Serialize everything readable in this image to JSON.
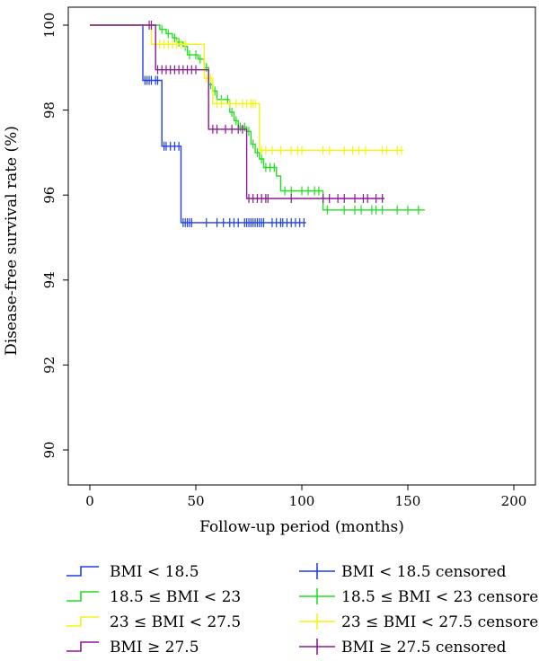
{
  "chart_data": {
    "type": "line",
    "subtype": "kaplan-meier step curve with censor marks",
    "xlabel": "Follow-up period (months)",
    "ylabel": "Disease-free survival rate (%)",
    "xlim": [
      0,
      200
    ],
    "ylim": [
      90,
      100
    ],
    "xticks": [
      0,
      50,
      100,
      150,
      200
    ],
    "yticks": [
      90,
      92,
      94,
      96,
      98,
      100
    ],
    "grid": false,
    "legend_position": "bottom",
    "series": [
      {
        "name": "BMI < 18.5",
        "censor_name": "BMI < 18.5 censored",
        "color": "#1f3fe6",
        "steps": [
          [
            0,
            100
          ],
          [
            25,
            100
          ],
          [
            25,
            98.7
          ],
          [
            34,
            98.7
          ],
          [
            34,
            97.15
          ],
          [
            43,
            97.15
          ],
          [
            43,
            95.35
          ],
          [
            102,
            95.35
          ]
        ],
        "censored": [
          [
            26,
            98.7
          ],
          [
            27,
            98.7
          ],
          [
            28,
            98.7
          ],
          [
            29,
            98.7
          ],
          [
            31,
            98.7
          ],
          [
            32,
            98.7
          ],
          [
            35,
            97.15
          ],
          [
            36,
            97.15
          ],
          [
            38,
            97.15
          ],
          [
            40,
            97.15
          ],
          [
            42,
            97.15
          ],
          [
            44,
            95.35
          ],
          [
            45,
            95.35
          ],
          [
            46,
            95.35
          ],
          [
            47,
            95.35
          ],
          [
            48,
            95.35
          ],
          [
            55,
            95.35
          ],
          [
            60,
            95.35
          ],
          [
            63,
            95.35
          ],
          [
            66,
            95.35
          ],
          [
            68,
            95.35
          ],
          [
            70,
            95.35
          ],
          [
            73,
            95.35
          ],
          [
            74,
            95.35
          ],
          [
            75,
            95.35
          ],
          [
            76,
            95.35
          ],
          [
            77,
            95.35
          ],
          [
            78,
            95.35
          ],
          [
            79,
            95.35
          ],
          [
            80,
            95.35
          ],
          [
            81,
            95.35
          ],
          [
            82,
            95.35
          ],
          [
            86,
            95.35
          ],
          [
            88,
            95.35
          ],
          [
            90,
            95.35
          ],
          [
            91,
            95.35
          ],
          [
            93,
            95.35
          ],
          [
            95,
            95.35
          ],
          [
            97,
            95.35
          ],
          [
            99,
            95.35
          ],
          [
            101,
            95.35
          ]
        ]
      },
      {
        "name": "18.5 ≤ BMI < 23",
        "censor_name": "18.5 ≤ BMI < 23 censored",
        "color": "#22dd22",
        "steps": [
          [
            0,
            100
          ],
          [
            33,
            100
          ],
          [
            33,
            99.9
          ],
          [
            36,
            99.9
          ],
          [
            36,
            99.8
          ],
          [
            39,
            99.8
          ],
          [
            39,
            99.7
          ],
          [
            41,
            99.7
          ],
          [
            41,
            99.6
          ],
          [
            44,
            99.6
          ],
          [
            44,
            99.5
          ],
          [
            46,
            99.5
          ],
          [
            46,
            99.3
          ],
          [
            51,
            99.3
          ],
          [
            51,
            99.2
          ],
          [
            54,
            99.2
          ],
          [
            54,
            99.0
          ],
          [
            56,
            99.0
          ],
          [
            56,
            98.6
          ],
          [
            58,
            98.6
          ],
          [
            58,
            98.45
          ],
          [
            60,
            98.45
          ],
          [
            60,
            98.25
          ],
          [
            66,
            98.25
          ],
          [
            66,
            97.95
          ],
          [
            68,
            97.95
          ],
          [
            68,
            97.75
          ],
          [
            70,
            97.75
          ],
          [
            70,
            97.6
          ],
          [
            74,
            97.6
          ],
          [
            74,
            97.5
          ],
          [
            76,
            97.5
          ],
          [
            76,
            97.2
          ],
          [
            78,
            97.2
          ],
          [
            78,
            97.0
          ],
          [
            80,
            97.0
          ],
          [
            80,
            96.85
          ],
          [
            82,
            96.85
          ],
          [
            82,
            96.65
          ],
          [
            88,
            96.65
          ],
          [
            88,
            96.45
          ],
          [
            90,
            96.45
          ],
          [
            90,
            96.1
          ],
          [
            110,
            96.1
          ],
          [
            110,
            95.65
          ],
          [
            158,
            95.65
          ]
        ],
        "censored": [
          [
            34,
            99.9
          ],
          [
            37,
            99.8
          ],
          [
            40,
            99.7
          ],
          [
            42,
            99.6
          ],
          [
            45,
            99.5
          ],
          [
            47,
            99.3
          ],
          [
            50,
            99.3
          ],
          [
            52,
            99.2
          ],
          [
            55,
            99.0
          ],
          [
            57,
            98.6
          ],
          [
            59,
            98.45
          ],
          [
            62,
            98.25
          ],
          [
            65,
            98.25
          ],
          [
            67,
            97.95
          ],
          [
            69,
            97.75
          ],
          [
            71,
            97.6
          ],
          [
            73,
            97.6
          ],
          [
            75,
            97.5
          ],
          [
            77,
            97.2
          ],
          [
            79,
            97.0
          ],
          [
            81,
            96.85
          ],
          [
            83,
            96.65
          ],
          [
            85,
            96.65
          ],
          [
            87,
            96.65
          ],
          [
            92,
            96.1
          ],
          [
            95,
            96.1
          ],
          [
            100,
            96.1
          ],
          [
            103,
            96.1
          ],
          [
            106,
            96.1
          ],
          [
            108,
            96.1
          ],
          [
            112,
            95.65
          ],
          [
            120,
            95.65
          ],
          [
            125,
            95.65
          ],
          [
            128,
            95.65
          ],
          [
            133,
            95.65
          ],
          [
            135,
            95.65
          ],
          [
            138,
            95.65
          ],
          [
            145,
            95.65
          ],
          [
            150,
            95.65
          ],
          [
            155,
            95.65
          ]
        ]
      },
      {
        "name": "23 ≤ BMI < 27.5",
        "censor_name": "23 ≤ BMI < 27.5 censored",
        "color": "#f4f414",
        "steps": [
          [
            0,
            100
          ],
          [
            29,
            100
          ],
          [
            29,
            99.55
          ],
          [
            54,
            99.55
          ],
          [
            54,
            98.75
          ],
          [
            58,
            98.75
          ],
          [
            58,
            98.15
          ],
          [
            80,
            98.15
          ],
          [
            80,
            97.05
          ],
          [
            148,
            97.05
          ]
        ],
        "censored": [
          [
            31,
            99.55
          ],
          [
            33,
            99.55
          ],
          [
            35,
            99.55
          ],
          [
            37,
            99.55
          ],
          [
            39,
            99.55
          ],
          [
            41,
            99.55
          ],
          [
            43,
            99.55
          ],
          [
            45,
            99.55
          ],
          [
            55,
            98.75
          ],
          [
            57,
            98.75
          ],
          [
            60,
            98.15
          ],
          [
            62,
            98.15
          ],
          [
            66,
            98.15
          ],
          [
            69,
            98.15
          ],
          [
            72,
            98.15
          ],
          [
            74,
            98.15
          ],
          [
            76,
            98.15
          ],
          [
            77,
            98.15
          ],
          [
            78,
            98.15
          ],
          [
            81,
            97.05
          ],
          [
            83,
            97.05
          ],
          [
            86,
            97.05
          ],
          [
            90,
            97.05
          ],
          [
            95,
            97.05
          ],
          [
            98,
            97.05
          ],
          [
            100,
            97.05
          ],
          [
            110,
            97.05
          ],
          [
            113,
            97.05
          ],
          [
            120,
            97.05
          ],
          [
            124,
            97.05
          ],
          [
            127,
            97.05
          ],
          [
            130,
            97.05
          ],
          [
            138,
            97.05
          ],
          [
            140,
            97.05
          ],
          [
            145,
            97.05
          ],
          [
            147,
            97.05
          ]
        ]
      },
      {
        "name": "BMI ≥ 27.5",
        "censor_name": "BMI ≥ 27.5 censored",
        "color": "#8a1a96",
        "steps": [
          [
            0,
            100
          ],
          [
            31,
            100
          ],
          [
            31,
            98.95
          ],
          [
            56,
            98.95
          ],
          [
            56,
            97.55
          ],
          [
            74,
            97.55
          ],
          [
            74,
            95.92
          ],
          [
            139,
            95.92
          ]
        ],
        "censored": [
          [
            28,
            100
          ],
          [
            29,
            100
          ],
          [
            32,
            98.95
          ],
          [
            34,
            98.95
          ],
          [
            36,
            98.95
          ],
          [
            38,
            98.95
          ],
          [
            40,
            98.95
          ],
          [
            42,
            98.95
          ],
          [
            44,
            98.95
          ],
          [
            46,
            98.95
          ],
          [
            48,
            98.95
          ],
          [
            50,
            98.95
          ],
          [
            58,
            97.55
          ],
          [
            60,
            97.55
          ],
          [
            64,
            97.55
          ],
          [
            67,
            97.55
          ],
          [
            70,
            97.55
          ],
          [
            72,
            97.55
          ],
          [
            75,
            95.92
          ],
          [
            77,
            95.92
          ],
          [
            79,
            95.92
          ],
          [
            81,
            95.92
          ],
          [
            83,
            95.92
          ],
          [
            84,
            95.92
          ],
          [
            95,
            95.92
          ],
          [
            110,
            95.92
          ],
          [
            113,
            95.92
          ],
          [
            117,
            95.92
          ],
          [
            120,
            95.92
          ],
          [
            125,
            95.92
          ],
          [
            129,
            95.92
          ],
          [
            131,
            95.92
          ],
          [
            135,
            95.92
          ],
          [
            138,
            95.92
          ]
        ]
      }
    ]
  }
}
